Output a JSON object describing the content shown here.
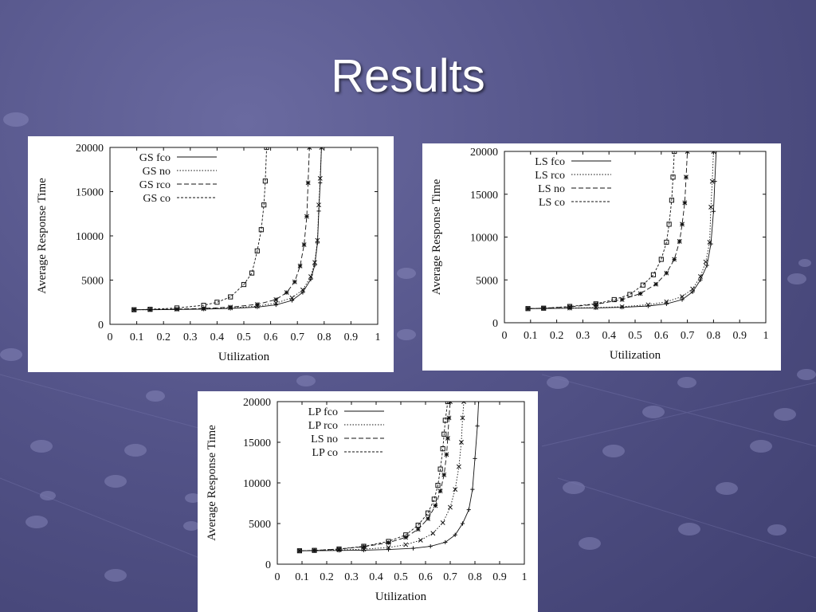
{
  "slide": {
    "title": "Results"
  },
  "chart_data": [
    {
      "id": "gs",
      "type": "line",
      "xlabel": "Utilization",
      "ylabel": "Average Response Time",
      "xlim": [
        0,
        1
      ],
      "ylim": [
        0,
        20000
      ],
      "xticks": [
        "0",
        "0.1",
        "0.2",
        "0.3",
        "0.4",
        "0.5",
        "0.6",
        "0.7",
        "0.8",
        "0.9",
        "1"
      ],
      "yticks": [
        "0",
        "5000",
        "10000",
        "15000",
        "20000"
      ],
      "legend_position": "top-left",
      "series": [
        {
          "name": "GS fco",
          "dash": "",
          "marker": "plus",
          "x": [
            0.09,
            0.15,
            0.25,
            0.35,
            0.45,
            0.55,
            0.62,
            0.68,
            0.72,
            0.75,
            0.765,
            0.775,
            0.78,
            0.785,
            0.79
          ],
          "y": [
            1650,
            1650,
            1680,
            1720,
            1800,
            1950,
            2200,
            2700,
            3600,
            5100,
            6700,
            9200,
            12800,
            16000,
            20000
          ]
        },
        {
          "name": "GS no",
          "dash": "1.5,2",
          "marker": "x",
          "x": [
            0.09,
            0.15,
            0.25,
            0.35,
            0.45,
            0.55,
            0.62,
            0.68,
            0.72,
            0.75,
            0.765,
            0.775,
            0.78,
            0.785,
            0.79
          ],
          "y": [
            1650,
            1660,
            1700,
            1760,
            1850,
            2050,
            2400,
            3000,
            3900,
            5400,
            7000,
            9500,
            13500,
            16500,
            20000
          ]
        },
        {
          "name": "GS rco",
          "dash": "6,3",
          "marker": "star",
          "x": [
            0.09,
            0.15,
            0.25,
            0.35,
            0.45,
            0.55,
            0.62,
            0.66,
            0.69,
            0.71,
            0.725,
            0.735,
            0.74,
            0.745
          ],
          "y": [
            1650,
            1670,
            1720,
            1800,
            1950,
            2250,
            2800,
            3600,
            4800,
            6600,
            9000,
            12200,
            16000,
            20000
          ]
        },
        {
          "name": "GS co",
          "dash": "3,2",
          "marker": "square",
          "x": [
            0.09,
            0.15,
            0.25,
            0.35,
            0.4,
            0.45,
            0.5,
            0.53,
            0.55,
            0.565,
            0.575,
            0.58,
            0.585
          ],
          "y": [
            1650,
            1700,
            1850,
            2150,
            2500,
            3100,
            4500,
            5800,
            8300,
            10700,
            13500,
            16200,
            20000
          ]
        }
      ]
    },
    {
      "id": "ls",
      "type": "line",
      "xlabel": "Utilization",
      "ylabel": "Average Response Time",
      "xlim": [
        0,
        1
      ],
      "ylim": [
        0,
        20000
      ],
      "xticks": [
        "0",
        "0.1",
        "0.2",
        "0.3",
        "0.4",
        "0.5",
        "0.6",
        "0.7",
        "0.8",
        "0.9",
        "1"
      ],
      "yticks": [
        "0",
        "5000",
        "10000",
        "15000",
        "20000"
      ],
      "legend_position": "top-left",
      "series": [
        {
          "name": "LS fco",
          "dash": "",
          "marker": "plus",
          "x": [
            0.09,
            0.15,
            0.25,
            0.35,
            0.45,
            0.55,
            0.62,
            0.68,
            0.72,
            0.75,
            0.775,
            0.79,
            0.8,
            0.805,
            0.81
          ],
          "y": [
            1650,
            1660,
            1690,
            1730,
            1800,
            1950,
            2200,
            2700,
            3600,
            5000,
            6700,
            9200,
            13000,
            16500,
            20000
          ]
        },
        {
          "name": "LS rco",
          "dash": "1.5,2",
          "marker": "x",
          "x": [
            0.09,
            0.15,
            0.25,
            0.35,
            0.45,
            0.55,
            0.62,
            0.68,
            0.72,
            0.75,
            0.77,
            0.785,
            0.79,
            0.795,
            0.8
          ],
          "y": [
            1650,
            1670,
            1710,
            1770,
            1870,
            2100,
            2450,
            3050,
            3950,
            5400,
            7100,
            9400,
            13500,
            16500,
            20000
          ]
        },
        {
          "name": "LS no",
          "dash": "6,3",
          "marker": "star",
          "x": [
            0.09,
            0.15,
            0.25,
            0.35,
            0.45,
            0.52,
            0.58,
            0.62,
            0.65,
            0.67,
            0.68,
            0.69,
            0.695,
            0.7
          ],
          "y": [
            1650,
            1700,
            1850,
            2150,
            2700,
            3400,
            4500,
            5800,
            7400,
            9500,
            11500,
            14000,
            17000,
            20000
          ]
        },
        {
          "name": "LS co",
          "dash": "3,2",
          "marker": "square",
          "x": [
            0.09,
            0.15,
            0.25,
            0.35,
            0.42,
            0.48,
            0.53,
            0.57,
            0.6,
            0.62,
            0.63,
            0.64,
            0.645,
            0.65
          ],
          "y": [
            1650,
            1700,
            1900,
            2200,
            2700,
            3300,
            4400,
            5600,
            7400,
            9400,
            11500,
            14300,
            17000,
            20000
          ]
        }
      ]
    },
    {
      "id": "lp",
      "type": "line",
      "xlabel": "Utilization",
      "ylabel": "Average Response Time",
      "xlim": [
        0,
        1
      ],
      "ylim": [
        0,
        20000
      ],
      "xticks": [
        "0",
        "0.1",
        "0.2",
        "0.3",
        "0.4",
        "0.5",
        "0.6",
        "0.7",
        "0.8",
        "0.9",
        "1"
      ],
      "yticks": [
        "0",
        "5000",
        "10000",
        "15000",
        "20000"
      ],
      "legend_position": "top-left",
      "series": [
        {
          "name": "LP fco",
          "dash": "",
          "marker": "plus",
          "x": [
            0.09,
            0.15,
            0.25,
            0.35,
            0.45,
            0.55,
            0.62,
            0.68,
            0.72,
            0.75,
            0.775,
            0.79,
            0.8,
            0.81,
            0.815
          ],
          "y": [
            1650,
            1660,
            1690,
            1730,
            1800,
            1950,
            2200,
            2700,
            3600,
            5000,
            6700,
            9200,
            13000,
            17000,
            20000
          ]
        },
        {
          "name": "LP rco",
          "dash": "1.5,2",
          "marker": "x",
          "x": [
            0.09,
            0.15,
            0.25,
            0.35,
            0.45,
            0.52,
            0.58,
            0.63,
            0.67,
            0.7,
            0.72,
            0.735,
            0.745,
            0.75,
            0.755
          ],
          "y": [
            1650,
            1680,
            1750,
            1850,
            2050,
            2400,
            2950,
            3800,
            5100,
            7000,
            9200,
            12000,
            15000,
            18000,
            20000
          ]
        },
        {
          "name": "LS no",
          "dash": "6,3",
          "marker": "star",
          "x": [
            0.09,
            0.15,
            0.25,
            0.35,
            0.45,
            0.52,
            0.57,
            0.61,
            0.64,
            0.66,
            0.675,
            0.685,
            0.69,
            0.695,
            0.7
          ],
          "y": [
            1650,
            1700,
            1850,
            2150,
            2650,
            3300,
            4300,
            5600,
            7200,
            9000,
            11000,
            13500,
            15500,
            18000,
            20000
          ]
        },
        {
          "name": "LP co",
          "dash": "3,2",
          "marker": "square",
          "x": [
            0.09,
            0.15,
            0.25,
            0.35,
            0.45,
            0.52,
            0.57,
            0.61,
            0.635,
            0.65,
            0.66,
            0.67,
            0.675,
            0.68,
            0.69
          ],
          "y": [
            1650,
            1700,
            1870,
            2200,
            2800,
            3600,
            4800,
            6300,
            8000,
            9700,
            11700,
            14200,
            16000,
            17700,
            20000
          ]
        }
      ]
    }
  ]
}
